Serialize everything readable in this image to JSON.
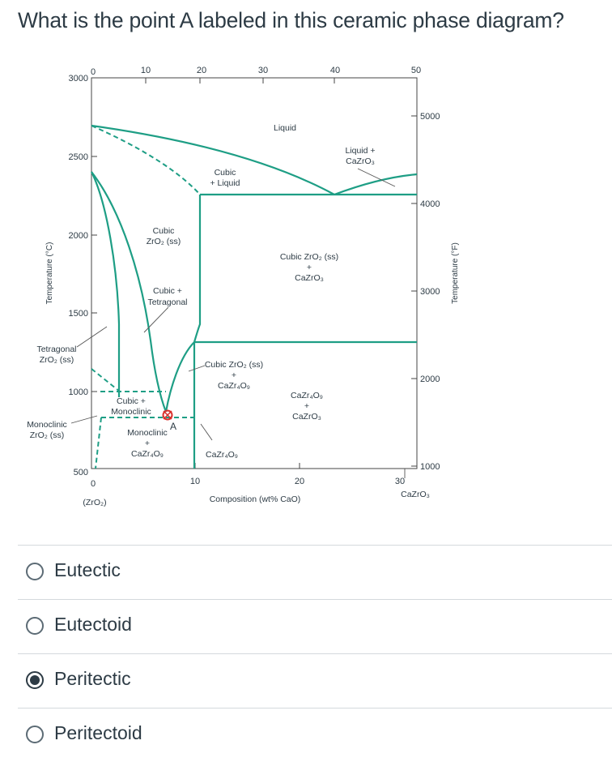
{
  "question": "What is the point A labeled in this ceramic phase diagram?",
  "diagram": {
    "accent_color": "#1e9e85",
    "marker_color": "#d9302c",
    "left_axis_title": "Temperature (°C)",
    "right_axis_title": "Temperature (°F)",
    "left_ticks": [
      "3000",
      "2500",
      "2000",
      "1500",
      "1000",
      "500"
    ],
    "right_ticks": [
      "5000",
      "4000",
      "3000",
      "2000",
      "1000"
    ],
    "top_ticks": [
      "0",
      "10",
      "20",
      "30",
      "40",
      "50"
    ],
    "bottom_ticks": [
      "0",
      "10",
      "20",
      "30"
    ],
    "bottom_left_label": "(ZrO₂)",
    "bottom_right_label": "CaZrO₃",
    "x_axis_title": "Composition (wt% CaO)",
    "point_label": "A",
    "regions": {
      "liquid": "Liquid",
      "liquid_cazro3_1": "Liquid +",
      "liquid_cazro3_2": "CaZrO₃",
      "cubic_liquid_1": "Cubic",
      "cubic_liquid_2": "+ Liquid",
      "cubic_ss_1": "Cubic",
      "cubic_ss_2": "ZrO₂ (ss)",
      "cubic_cazro3_1": "Cubic ZrO₂ (ss)",
      "cubic_cazro3_2": "+",
      "cubic_cazro3_3": "CaZrO₃",
      "cubic_tetragonal_1": "Cubic +",
      "cubic_tetragonal_2": "Tetragonal",
      "tetragonal_1": "Tetragonal",
      "tetragonal_2": "ZrO₂ (ss)",
      "cubic_cazr4o9_1": "Cubic ZrO₂ (ss)",
      "cubic_cazr4o9_2": "+",
      "cubic_cazr4o9_3": "CaZr₄O₉",
      "cazr4o9_cazro3_1": "CaZr₄O₉",
      "cazr4o9_cazro3_2": "+",
      "cazr4o9_cazro3_3": "CaZrO₃",
      "cubic_monoclinic_1": "Cubic +",
      "cubic_monoclinic_2": "Monoclinic",
      "monoclinic_1": "Monoclinic",
      "monoclinic_2": "ZrO₂ (ss)",
      "monoclinic_cazr4o9_1": "Monoclinic",
      "monoclinic_cazr4o9_2": "+",
      "monoclinic_cazr4o9_3": "CaZr₄O₉",
      "cazr4o9": "CaZr₄O₉"
    }
  },
  "options": [
    {
      "label": "Eutectic",
      "selected": false
    },
    {
      "label": "Eutectoid",
      "selected": false
    },
    {
      "label": "Peritectic",
      "selected": true
    },
    {
      "label": "Peritectoid",
      "selected": false
    }
  ]
}
